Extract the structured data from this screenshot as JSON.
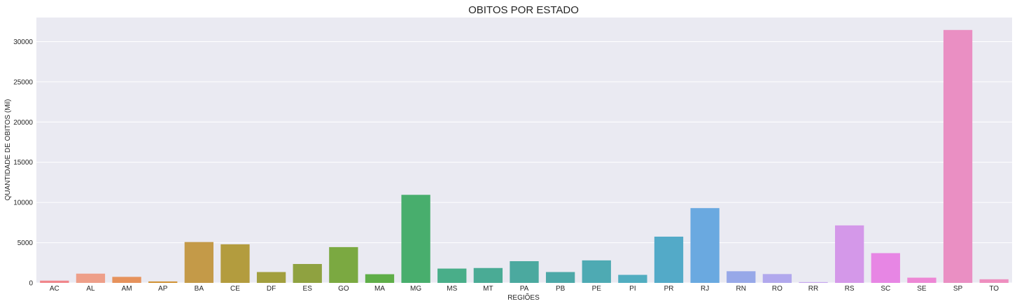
{
  "chart_data": {
    "type": "bar",
    "title": "OBITOS POR ESTADO",
    "xlabel": "REGIÕES",
    "ylabel": "QUANTIDADE DE OBITOS (Mil)",
    "ylim": [
      0,
      33000
    ],
    "yticks": [
      0,
      5000,
      10000,
      15000,
      20000,
      25000,
      30000
    ],
    "grid": true,
    "legend": "none",
    "background": "#eaeaf2",
    "categories": [
      "AC",
      "AL",
      "AM",
      "AP",
      "BA",
      "CE",
      "DF",
      "ES",
      "GO",
      "MA",
      "MG",
      "MS",
      "MT",
      "PA",
      "PB",
      "PE",
      "PI",
      "PR",
      "RJ",
      "RN",
      "RO",
      "RR",
      "RS",
      "SC",
      "SE",
      "SP",
      "TO"
    ],
    "values": [
      280,
      1150,
      750,
      180,
      5080,
      4800,
      1350,
      2350,
      4450,
      1080,
      10950,
      1780,
      1850,
      2700,
      1350,
      2800,
      1000,
      5750,
      9300,
      1450,
      1100,
      100,
      7150,
      3700,
      650,
      31450,
      450
    ],
    "colors": [
      "#f0868b",
      "#ee9f89",
      "#e6925c",
      "#d09337",
      "#c49a48",
      "#b39c3e",
      "#a29f3e",
      "#8fa240",
      "#7ba941",
      "#5fae48",
      "#48ae6d",
      "#49ae89",
      "#4aab95",
      "#4ba99f",
      "#4ca8a8",
      "#4eaab3",
      "#51adc0",
      "#53aac8",
      "#6aa9e0",
      "#97a8e8",
      "#b1a8ed",
      "#c6a6ef",
      "#d498e9",
      "#e786e4",
      "#ed87d5",
      "#ea8fc3",
      "#ee8fbf"
    ]
  }
}
